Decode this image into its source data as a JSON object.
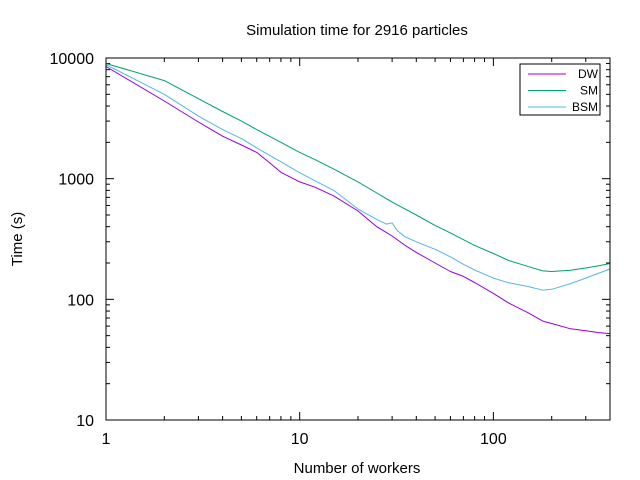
{
  "chart_data": {
    "type": "line",
    "title": "Simulation time for 2916 particles",
    "xlabel": "Number of workers",
    "ylabel": "Time (s)",
    "x_scale": "log",
    "y_scale": "log",
    "xlim": [
      1,
      400
    ],
    "ylim": [
      10,
      10000
    ],
    "x_ticks": [
      1,
      10,
      100
    ],
    "x_tick_labels": [
      "1",
      "10",
      "100"
    ],
    "y_ticks": [
      10,
      100,
      1000,
      10000
    ],
    "y_tick_labels": [
      "10",
      "100",
      "1000",
      "10000"
    ],
    "grid": false,
    "legend_position": "top-right",
    "series": [
      {
        "name": "DW",
        "color": "#9400d3",
        "points": [
          [
            1,
            8500
          ],
          [
            2,
            4400
          ],
          [
            3,
            2950
          ],
          [
            4,
            2250
          ],
          [
            5,
            1900
          ],
          [
            6,
            1650
          ],
          [
            7,
            1350
          ],
          [
            8,
            1130
          ],
          [
            10,
            940
          ],
          [
            12,
            850
          ],
          [
            15,
            720
          ],
          [
            20,
            540
          ],
          [
            25,
            400
          ],
          [
            30,
            335
          ],
          [
            35,
            280
          ],
          [
            40,
            245
          ],
          [
            50,
            200
          ],
          [
            60,
            170
          ],
          [
            70,
            155
          ],
          [
            80,
            138
          ],
          [
            100,
            112
          ],
          [
            120,
            93
          ],
          [
            150,
            78
          ],
          [
            180,
            66
          ],
          [
            200,
            63
          ],
          [
            250,
            57
          ],
          [
            300,
            55
          ],
          [
            350,
            53
          ],
          [
            400,
            52
          ]
        ]
      },
      {
        "name": "SM",
        "color": "#009e73",
        "points": [
          [
            1,
            9000
          ],
          [
            2,
            6500
          ],
          [
            3,
            4600
          ],
          [
            4,
            3600
          ],
          [
            5,
            3000
          ],
          [
            6,
            2550
          ],
          [
            8,
            2000
          ],
          [
            10,
            1650
          ],
          [
            12,
            1440
          ],
          [
            15,
            1200
          ],
          [
            20,
            940
          ],
          [
            25,
            760
          ],
          [
            30,
            640
          ],
          [
            40,
            500
          ],
          [
            50,
            410
          ],
          [
            60,
            355
          ],
          [
            80,
            280
          ],
          [
            100,
            240
          ],
          [
            120,
            210
          ],
          [
            150,
            188
          ],
          [
            180,
            172
          ],
          [
            200,
            170
          ],
          [
            250,
            174
          ],
          [
            300,
            182
          ],
          [
            350,
            190
          ],
          [
            400,
            198
          ]
        ]
      },
      {
        "name": "BSM",
        "color": "#56b4e9",
        "points": [
          [
            1,
            8800
          ],
          [
            2,
            5000
          ],
          [
            3,
            3300
          ],
          [
            4,
            2550
          ],
          [
            5,
            2150
          ],
          [
            6,
            1800
          ],
          [
            8,
            1380
          ],
          [
            10,
            1120
          ],
          [
            12,
            960
          ],
          [
            15,
            800
          ],
          [
            18,
            640
          ],
          [
            20,
            560
          ],
          [
            25,
            460
          ],
          [
            28,
            420
          ],
          [
            30,
            430
          ],
          [
            32,
            370
          ],
          [
            35,
            330
          ],
          [
            40,
            300
          ],
          [
            50,
            260
          ],
          [
            60,
            225
          ],
          [
            70,
            195
          ],
          [
            80,
            175
          ],
          [
            100,
            150
          ],
          [
            120,
            137
          ],
          [
            150,
            128
          ],
          [
            180,
            119
          ],
          [
            200,
            121
          ],
          [
            250,
            135
          ],
          [
            300,
            150
          ],
          [
            350,
            165
          ],
          [
            400,
            178
          ]
        ]
      }
    ]
  }
}
